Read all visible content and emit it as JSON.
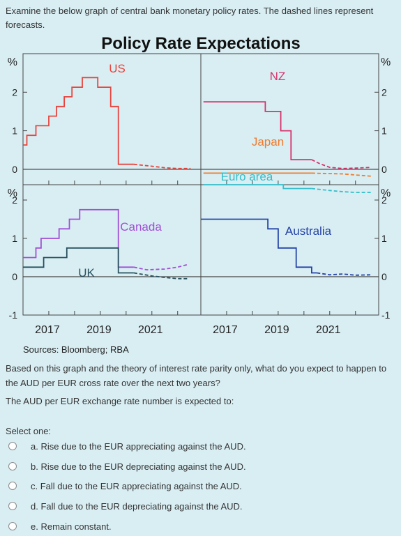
{
  "question": {
    "intro": "Examine the below graph of central bank monetary policy rates. The dashed lines represent forecasts.",
    "body": "Based on this graph and the theory of interest rate parity only, what do you expect to happen to the AUD per EUR cross rate over the next two years?",
    "prompt": "The AUD per EUR exchange rate number is expected to:",
    "select_label": "Select one:",
    "options": [
      {
        "label": "a. Rise due to the EUR appreciating against the AUD."
      },
      {
        "label": "b. Rise due to the EUR depreciating against the AUD."
      },
      {
        "label": "c. Fall due to the EUR appreciating against the AUD."
      },
      {
        "label": "d. Fall due to the EUR depreciating against the AUD."
      },
      {
        "label": "e. Remain constant."
      }
    ]
  },
  "chart_data": {
    "type": "line",
    "title": "Policy Rate Expectations",
    "source": "Sources: Bloomberg; RBA",
    "unit_label": "%",
    "forecast_style": "dashed",
    "grid": false,
    "x_ticks": [
      "2017",
      "2019",
      "2021"
    ],
    "panels": [
      {
        "id": "top-left",
        "ylim": [
          -0.4,
          3.0
        ],
        "yticks": [
          0,
          1,
          2
        ],
        "xlim": [
          2016.0,
          2022.9
        ],
        "series": [
          {
            "name": "US",
            "color": "#e8443d",
            "actual": [
              [
                2016.0,
                0.63
              ],
              [
                2016.15,
                0.63
              ],
              [
                2016.15,
                0.88
              ],
              [
                2016.5,
                0.88
              ],
              [
                2016.5,
                1.13
              ],
              [
                2017.0,
                1.13
              ],
              [
                2017.0,
                1.38
              ],
              [
                2017.3,
                1.38
              ],
              [
                2017.3,
                1.63
              ],
              [
                2017.6,
                1.63
              ],
              [
                2017.6,
                1.88
              ],
              [
                2017.9,
                1.88
              ],
              [
                2017.9,
                2.13
              ],
              [
                2018.3,
                2.13
              ],
              [
                2018.3,
                2.38
              ],
              [
                2018.9,
                2.38
              ],
              [
                2018.9,
                2.13
              ],
              [
                2019.4,
                2.13
              ],
              [
                2019.4,
                1.63
              ],
              [
                2019.7,
                1.63
              ],
              [
                2019.7,
                0.13
              ],
              [
                2020.3,
                0.13
              ]
            ],
            "forecast": [
              [
                2020.3,
                0.13
              ],
              [
                2021.0,
                0.08
              ],
              [
                2021.5,
                0.04
              ],
              [
                2022.0,
                0.02
              ],
              [
                2022.5,
                0.02
              ]
            ]
          }
        ]
      },
      {
        "id": "top-right",
        "ylim": [
          -0.4,
          3.0
        ],
        "yticks": [
          0,
          1,
          2
        ],
        "xlim": [
          2016.0,
          2022.9
        ],
        "series": [
          {
            "name": "NZ",
            "color": "#d6336c",
            "actual": [
              [
                2016.1,
                1.75
              ],
              [
                2018.5,
                1.75
              ],
              [
                2018.5,
                1.5
              ],
              [
                2019.1,
                1.5
              ],
              [
                2019.1,
                1.0
              ],
              [
                2019.5,
                1.0
              ],
              [
                2019.5,
                0.25
              ],
              [
                2020.3,
                0.25
              ]
            ],
            "forecast": [
              [
                2020.3,
                0.25
              ],
              [
                2020.6,
                0.15
              ],
              [
                2021.0,
                0.05
              ],
              [
                2021.5,
                0.02
              ],
              [
                2022.0,
                0.03
              ],
              [
                2022.6,
                0.05
              ]
            ]
          },
          {
            "name": "Japan",
            "color": "#f07a2c",
            "actual": [
              [
                2016.1,
                -0.1
              ],
              [
                2020.3,
                -0.1
              ]
            ],
            "forecast": [
              [
                2020.3,
                -0.1
              ],
              [
                2021.5,
                -0.12
              ],
              [
                2022.6,
                -0.18
              ]
            ]
          },
          {
            "name": "Euro area",
            "color": "#35bec9",
            "actual": [
              [
                2016.1,
                -0.4
              ],
              [
                2019.2,
                -0.4
              ],
              [
                2019.2,
                -0.5
              ],
              [
                2020.3,
                -0.5
              ]
            ],
            "forecast": [
              [
                2020.3,
                -0.5
              ],
              [
                2021.0,
                -0.55
              ],
              [
                2021.5,
                -0.58
              ],
              [
                2022.0,
                -0.6
              ],
              [
                2022.6,
                -0.6
              ]
            ]
          }
        ]
      },
      {
        "id": "bottom-left",
        "ylim": [
          -1.0,
          2.4
        ],
        "yticks": [
          -1,
          0,
          1,
          2
        ],
        "xlim": [
          2016.0,
          2022.9
        ],
        "series": [
          {
            "name": "Canada",
            "color": "#a04fd6",
            "actual": [
              [
                2016.0,
                0.5
              ],
              [
                2016.5,
                0.5
              ],
              [
                2016.5,
                0.75
              ],
              [
                2016.7,
                0.75
              ],
              [
                2016.7,
                1.0
              ],
              [
                2017.4,
                1.0
              ],
              [
                2017.4,
                1.25
              ],
              [
                2017.8,
                1.25
              ],
              [
                2017.8,
                1.5
              ],
              [
                2018.2,
                1.5
              ],
              [
                2018.2,
                1.75
              ],
              [
                2019.7,
                1.75
              ],
              [
                2019.7,
                0.25
              ],
              [
                2020.3,
                0.25
              ]
            ],
            "forecast": [
              [
                2020.3,
                0.25
              ],
              [
                2020.8,
                0.18
              ],
              [
                2021.5,
                0.2
              ],
              [
                2022.0,
                0.25
              ],
              [
                2022.4,
                0.32
              ]
            ]
          },
          {
            "name": "UK",
            "color": "#28515f",
            "actual": [
              [
                2016.0,
                0.25
              ],
              [
                2016.8,
                0.25
              ],
              [
                2016.8,
                0.5
              ],
              [
                2017.7,
                0.5
              ],
              [
                2017.7,
                0.75
              ],
              [
                2019.7,
                0.75
              ],
              [
                2019.7,
                0.1
              ],
              [
                2020.3,
                0.1
              ]
            ],
            "forecast": [
              [
                2020.3,
                0.1
              ],
              [
                2021.0,
                0.02
              ],
              [
                2021.5,
                -0.02
              ],
              [
                2022.0,
                -0.05
              ],
              [
                2022.4,
                -0.05
              ]
            ]
          }
        ]
      },
      {
        "id": "bottom-right",
        "ylim": [
          -1.0,
          2.4
        ],
        "yticks": [
          -1,
          0,
          1,
          2
        ],
        "xlim": [
          2016.0,
          2022.9
        ],
        "series": [
          {
            "name": "Australia",
            "color": "#2443a6",
            "actual": [
              [
                2016.0,
                1.5
              ],
              [
                2018.6,
                1.5
              ],
              [
                2018.6,
                1.25
              ],
              [
                2019.0,
                1.25
              ],
              [
                2019.0,
                0.75
              ],
              [
                2019.7,
                0.75
              ],
              [
                2019.7,
                0.25
              ],
              [
                2020.3,
                0.25
              ],
              [
                2020.3,
                0.1
              ],
              [
                2020.5,
                0.1
              ]
            ],
            "forecast": [
              [
                2020.5,
                0.1
              ],
              [
                2021.0,
                0.05
              ],
              [
                2021.5,
                0.07
              ],
              [
                2022.0,
                0.04
              ],
              [
                2022.6,
                0.05
              ]
            ]
          }
        ]
      }
    ]
  }
}
